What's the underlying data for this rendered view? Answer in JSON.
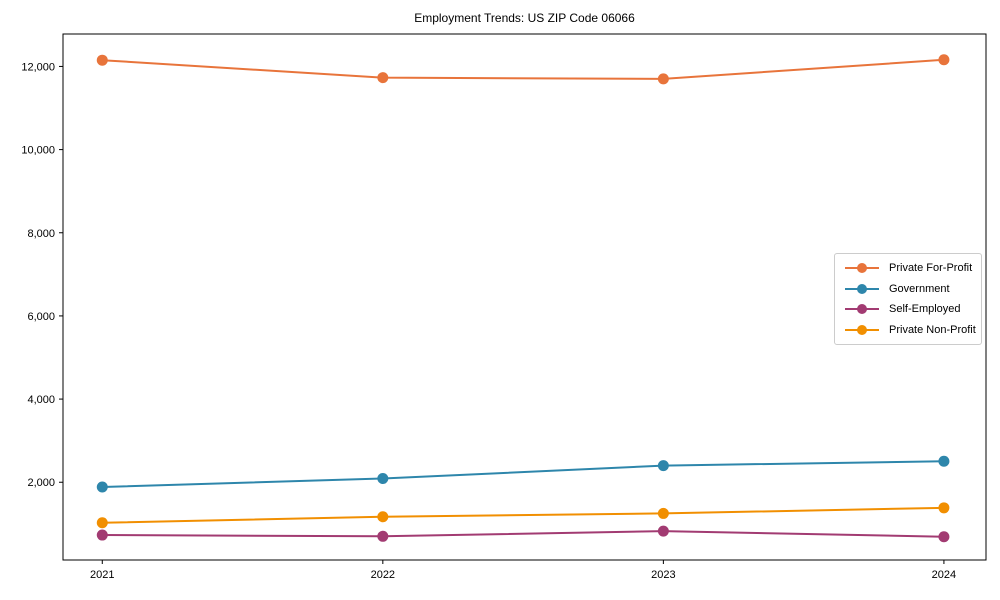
{
  "chart_data": {
    "type": "line",
    "title": "Employment Trends: US ZIP Code 06066",
    "x": [
      2021,
      2022,
      2023,
      2024
    ],
    "categories": [
      "2021",
      "2022",
      "2023",
      "2024"
    ],
    "series": [
      {
        "name": "Private For-Profit",
        "color": "#E8743B",
        "values": [
          12150,
          11730,
          11700,
          12160
        ]
      },
      {
        "name": "Government",
        "color": "#2E86AB",
        "values": [
          1885,
          2090,
          2400,
          2505
        ]
      },
      {
        "name": "Self-Employed",
        "color": "#A23B72",
        "values": [
          730,
          700,
          825,
          690
        ]
      },
      {
        "name": "Private Non-Profit",
        "color": "#F18F01",
        "values": [
          1025,
          1170,
          1250,
          1385
        ]
      }
    ],
    "xlabel": "",
    "ylabel": "",
    "xlim": [
      2020.86,
      2024.15
    ],
    "ylim": [
      130,
      12780
    ],
    "yticks": [
      2000,
      4000,
      6000,
      8000,
      10000,
      12000
    ],
    "ytick_labels": [
      "2,000",
      "4,000",
      "6,000",
      "8,000",
      "10,000",
      "12,000"
    ],
    "grid": false,
    "legend_position": "center right",
    "marker": "circle",
    "background": "#ffffff",
    "axis_color": "#000000",
    "text_color": "#000000",
    "legend_border_color": "#cccccc"
  }
}
